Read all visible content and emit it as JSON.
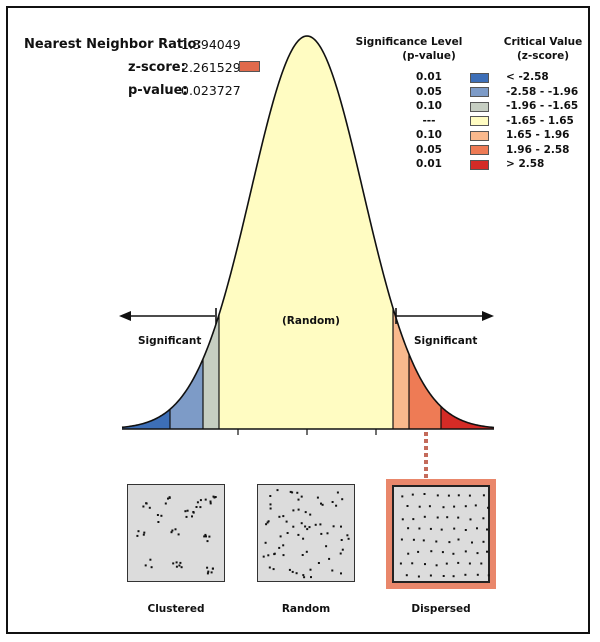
{
  "stats": {
    "nnr_label": "Nearest Neighbor Ratio:",
    "nnr_value": "1.394049",
    "z_label": "z-score:",
    "z_value": "2.261529",
    "z_swatch_color": "#e06a4c",
    "p_label": "p-value:",
    "p_value": "0.023727"
  },
  "legend": {
    "sig_header_1": "Significance Level",
    "sig_header_2": "(p-value)",
    "crit_header_1": "Critical Value",
    "crit_header_2": "(z-score)",
    "rows": [
      {
        "p": "0.01",
        "z": "< -2.58",
        "color": "#3d6fb8"
      },
      {
        "p": "0.05",
        "z": "-2.58 - -1.96",
        "color": "#7d9bc7"
      },
      {
        "p": "0.10",
        "z": "-1.96 - -1.65",
        "color": "#c6cec2"
      },
      {
        "p": "---",
        "z": "-1.65 - 1.65",
        "color": "#fffcc2"
      },
      {
        "p": "0.10",
        "z": "1.65 - 1.96",
        "color": "#f9b98d"
      },
      {
        "p": "0.05",
        "z": "1.96 - 2.58",
        "color": "#ee7b55"
      },
      {
        "p": "0.01",
        "z": "> 2.58",
        "color": "#d42b26"
      }
    ]
  },
  "curve": {
    "random_label": "(Random)",
    "left_sig_label": "Significant",
    "right_sig_label": "Significant"
  },
  "patterns": {
    "clustered": "Clustered",
    "random": "Random",
    "dispersed": "Dispersed"
  }
}
